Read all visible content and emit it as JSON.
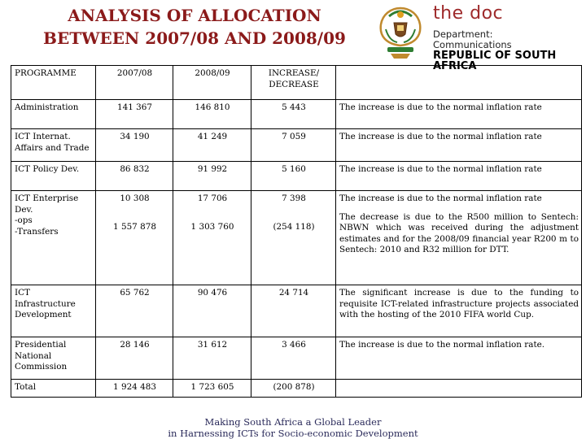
{
  "header": {
    "title_line1": "ANALYSIS OF ALLOCATION",
    "title_line2": "BETWEEN 2007/08 AND 2008/09",
    "brand": "the doc",
    "dept_line1": "Department:",
    "dept_line2": "Communications",
    "dept_line3": "REPUBLIC OF SOUTH AFRICA"
  },
  "table": {
    "columns": [
      "PROGRAMME",
      "2007/08",
      "2008/09",
      "INCREASE/ DECREASE",
      ""
    ],
    "rows": [
      {
        "programme": "Administration",
        "y2007": "141 367",
        "y2008": "146 810",
        "change": "5 443",
        "explanation": "The increase is due to the normal inflation rate"
      },
      {
        "programme": "ICT Internat. Affairs and Trade",
        "y2007": "34 190",
        "y2008": "41 249",
        "change": "7 059",
        "explanation": "The increase is due to the normal inflation rate"
      },
      {
        "programme": "ICT Policy Dev.",
        "y2007": "86 832",
        "y2008": "91 992",
        "change": "5 160",
        "explanation": "The increase is due to the normal inflation rate"
      },
      {
        "programme": "ICT Enterprise Dev.",
        "programme_sub1": "-ops",
        "programme_sub2": "-Transfers",
        "y2007": "10 308",
        "y2008": "17 706",
        "change": "7 398",
        "explanation": "The increase is due to the normal inflation rate",
        "y2007_b": "1 557 878",
        "y2008_b": "1 303 760",
        "change_b": "(254 118)",
        "explanation_b": "The decrease is due to the R500 million to Sentech: NBWN which was received during the adjustment estimates and for the 2008/09 financial year R200 m to Sentech: 2010 and R32 million for DTT."
      },
      {
        "programme": "ICT Infrastructure Development",
        "y2007": "65 762",
        "y2008": "90 476",
        "change": "24 714",
        "explanation": "The significant increase is due to the funding to requisite ICT-related infrastructure projects associated with the hosting of the 2010 FIFA world Cup."
      },
      {
        "programme": "Presidential National Commission",
        "y2007": "28 146",
        "y2008": "31 612",
        "change": "3 466",
        "explanation": "The increase is due to the normal inflation rate."
      },
      {
        "programme": "Total",
        "y2007": "1 924 483",
        "y2008": "1 723 605",
        "change": "(200 878)",
        "explanation": ""
      }
    ]
  },
  "footer": {
    "line1": "Making South Africa a Global Leader",
    "line2": "in Harnessing ICTs for Socio-economic Development"
  },
  "colors": {
    "title": "#8b1a1a",
    "brand": "#9e2a2b",
    "footer": "#2a2a5a"
  }
}
